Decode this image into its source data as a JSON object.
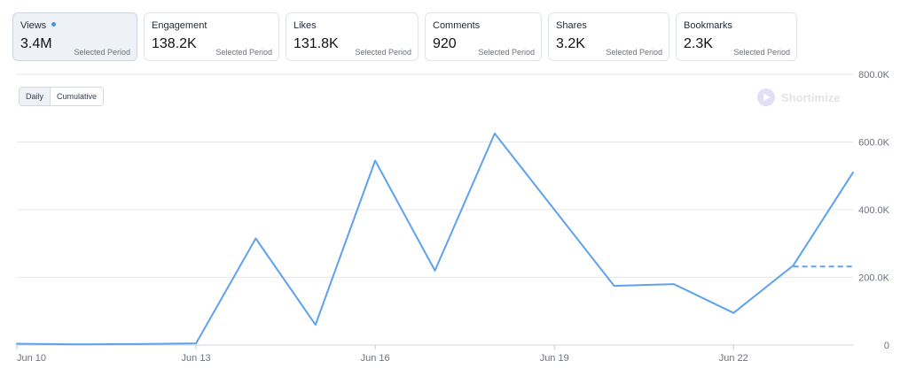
{
  "metric_cards": [
    {
      "label": "Views",
      "value": "3.4M",
      "period": "Selected Period",
      "selected": true
    },
    {
      "label": "Engagement",
      "value": "138.2K",
      "period": "Selected Period",
      "selected": false
    },
    {
      "label": "Likes",
      "value": "131.8K",
      "period": "Selected Period",
      "selected": false
    },
    {
      "label": "Comments",
      "value": "920",
      "period": "Selected Period",
      "selected": false
    },
    {
      "label": "Shares",
      "value": "3.2K",
      "period": "Selected Period",
      "selected": false
    },
    {
      "label": "Bookmarks",
      "value": "2.3K",
      "period": "Selected Period",
      "selected": false
    }
  ],
  "toggle": {
    "daily_label": "Daily",
    "cumulative_label": "Cumulative",
    "active": "Daily"
  },
  "watermark": {
    "text": "Shortimize"
  },
  "colors": {
    "line": "#5ea2ee",
    "grid": "#e5e7eb",
    "axis_text": "#6b7280",
    "selected_dot": "#4a90e2"
  },
  "chart_data": {
    "type": "line",
    "x_ticks": [
      "Jun 10",
      "Jun 13",
      "Jun 16",
      "Jun 19",
      "Jun 22"
    ],
    "y_ticks": [
      "0",
      "200.0K",
      "400.0K",
      "600.0K",
      "800.0K"
    ],
    "ylim": [
      0,
      800000
    ],
    "y_axis_position": "right",
    "grid": true,
    "series": [
      {
        "x": [
          "Jun 10",
          "Jun 11",
          "Jun 12",
          "Jun 13",
          "Jun 14",
          "Jun 15",
          "Jun 16",
          "Jun 17",
          "Jun 18",
          "Jun 19",
          "Jun 20",
          "Jun 21",
          "Jun 22",
          "Jun 23",
          "Jun 24"
        ],
        "values": [
          4000,
          2000,
          3000,
          5000,
          315000,
          60000,
          545000,
          220000,
          625000,
          400000,
          175000,
          180000,
          95000,
          235000,
          510000
        ]
      }
    ],
    "reference_line": {
      "value": 232000,
      "from": "Jun 23",
      "to": "Jun 24",
      "style": "dashed"
    }
  }
}
